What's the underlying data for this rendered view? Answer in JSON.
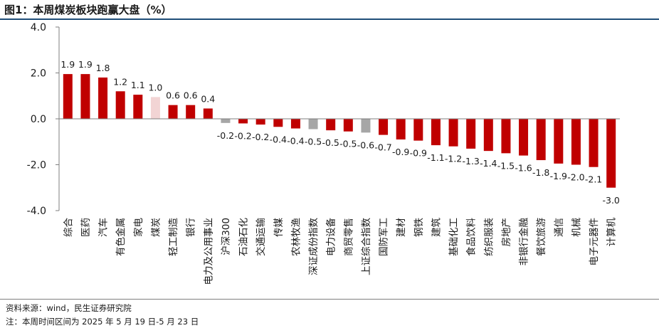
{
  "title": "图1：本周煤炭板块跑赢大盘（%）",
  "source": "资料来源：wind，民生证券研究院",
  "footnote": "注：本周时间区间为 2025 年 5 月 19 日-5 月 23 日",
  "colors": {
    "positive": "#c00000",
    "highlight": "#f2d4d4",
    "index": "#a6a6a6",
    "axis": "#7f7f7f",
    "text": "#1a1a1a"
  },
  "chart_data": {
    "type": "bar",
    "ylim": [
      -4.0,
      4.0
    ],
    "yticks": [
      "4.0",
      "2.0",
      "0.0",
      "-2.0",
      "-4.0"
    ],
    "ytick_values": [
      4,
      2,
      0,
      -2,
      -4
    ],
    "grid": false,
    "legend": "none",
    "categories": [
      "综合",
      "医药",
      "汽车",
      "有色金属",
      "家电",
      "煤炭",
      "轻工制造",
      "银行",
      "电力及公用事业",
      "沪深300",
      "石油石化",
      "交通运输",
      "传媒",
      "农林牧渔",
      "深证成份指数",
      "电力设备",
      "商贸零售",
      "上证综合指数",
      "国防军工",
      "建材",
      "钢铁",
      "建筑",
      "基础化工",
      "食品饮料",
      "纺织服装",
      "房地产",
      "非银行金融",
      "餐饮旅游",
      "通信",
      "机械",
      "电子元器件",
      "计算机"
    ],
    "values": [
      1.9,
      1.9,
      1.8,
      1.2,
      1.1,
      1.0,
      0.6,
      0.6,
      0.4,
      -0.2,
      -0.2,
      -0.2,
      -0.4,
      -0.4,
      -0.5,
      -0.5,
      -0.5,
      -0.6,
      -0.7,
      -0.9,
      -0.9,
      -1.1,
      -1.2,
      -1.3,
      -1.4,
      -1.5,
      -1.6,
      -1.8,
      -1.9,
      -2.0,
      -2.1,
      -3.0
    ],
    "bar_heights": [
      1.95,
      1.95,
      1.8,
      1.2,
      1.05,
      0.95,
      0.6,
      0.6,
      0.45,
      -0.18,
      -0.2,
      -0.25,
      -0.35,
      -0.42,
      -0.45,
      -0.5,
      -0.55,
      -0.6,
      -0.7,
      -0.9,
      -0.95,
      -1.15,
      -1.2,
      -1.3,
      -1.4,
      -1.5,
      -1.6,
      -1.8,
      -1.95,
      -2.0,
      -2.1,
      -3.0
    ],
    "labels": [
      "1.9",
      "1.9",
      "1.8",
      "1.2",
      "1.1",
      "1.0",
      "0.6",
      "0.6",
      "0.4",
      "-0.2",
      "-0.2",
      "-0.2",
      "-0.4",
      "-0.4",
      "-0.5",
      "-0.5",
      "-0.5",
      "-0.6",
      "-0.7",
      "-0.9",
      "-0.9",
      "-1.1",
      "-1.2",
      "-1.3",
      "-1.4",
      "-1.5",
      "-1.6",
      "-1.8",
      "-1.9",
      "-2.0",
      "-2.1",
      "-3.0"
    ],
    "bar_kinds": [
      "sector",
      "sector",
      "sector",
      "sector",
      "sector",
      "highlight",
      "sector",
      "sector",
      "sector",
      "index",
      "sector",
      "sector",
      "sector",
      "sector",
      "index",
      "sector",
      "sector",
      "index",
      "sector",
      "sector",
      "sector",
      "sector",
      "sector",
      "sector",
      "sector",
      "sector",
      "sector",
      "sector",
      "sector",
      "sector",
      "sector",
      "sector"
    ]
  }
}
